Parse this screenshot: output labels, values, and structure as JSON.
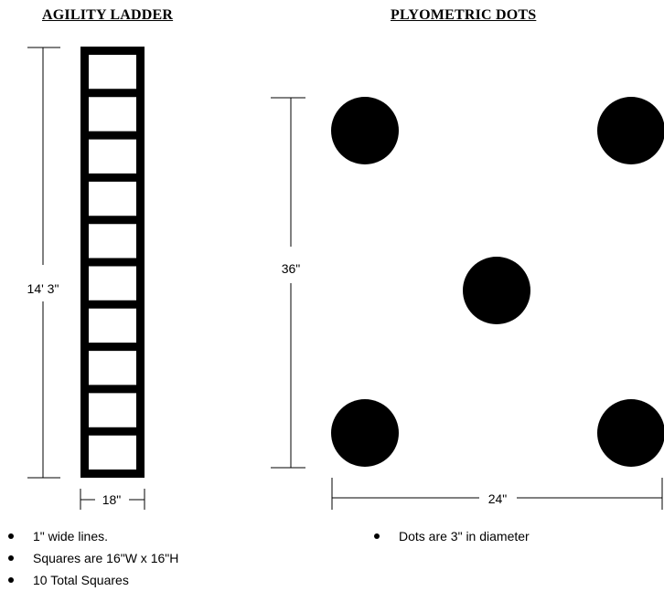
{
  "ladder": {
    "title": "AGILITY LADDER",
    "square_count": 10,
    "height_label": "14' 3\"",
    "width_label": "18\"",
    "notes": [
      "1\" wide lines.",
      "Squares are 16\"W x 16\"H",
      "10 Total Squares"
    ]
  },
  "dots": {
    "title": "PLYOMETRIC DOTS",
    "height_label": "36\"",
    "width_label": "24\"",
    "notes": [
      "Dots are 3\" in diameter"
    ]
  },
  "colors": {
    "ink": "#000000",
    "background": "#ffffff"
  }
}
